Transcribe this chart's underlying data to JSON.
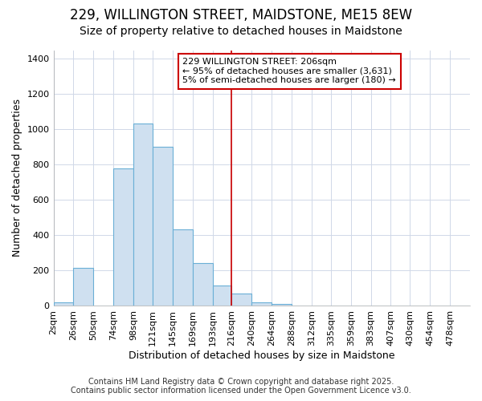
{
  "title": "229, WILLINGTON STREET, MAIDSTONE, ME15 8EW",
  "subtitle": "Size of property relative to detached houses in Maidstone",
  "xlabel": "Distribution of detached houses by size in Maidstone",
  "ylabel": "Number of detached properties",
  "categories": [
    "2sqm",
    "26sqm",
    "50sqm",
    "74sqm",
    "98sqm",
    "121sqm",
    "145sqm",
    "169sqm",
    "193sqm",
    "216sqm",
    "240sqm",
    "264sqm",
    "288sqm",
    "312sqm",
    "335sqm",
    "359sqm",
    "383sqm",
    "407sqm",
    "430sqm",
    "454sqm",
    "478sqm"
  ],
  "bin_edges": [
    2,
    26,
    50,
    74,
    98,
    121,
    145,
    169,
    193,
    216,
    240,
    264,
    288,
    312,
    335,
    359,
    383,
    407,
    430,
    454,
    478
  ],
  "values": [
    20,
    215,
    0,
    780,
    1035,
    900,
    435,
    245,
    115,
    70,
    20,
    10,
    0,
    0,
    0,
    0,
    0,
    0,
    0,
    0,
    0
  ],
  "bar_color": "#cfe0f0",
  "bar_edge_color": "#6aafd6",
  "vline_x": 216,
  "vline_color": "#cc0000",
  "annotation_title": "229 WILLINGTON STREET: 206sqm",
  "annotation_line1": "← 95% of detached houses are smaller (3,631)",
  "annotation_line2": "5% of semi-detached houses are larger (180) →",
  "annotation_box_color": "#cc0000",
  "ylim": [
    0,
    1450
  ],
  "yticks": [
    0,
    200,
    400,
    600,
    800,
    1000,
    1200,
    1400
  ],
  "footer1": "Contains HM Land Registry data © Crown copyright and database right 2025.",
  "footer2": "Contains public sector information licensed under the Open Government Licence v3.0.",
  "bg_color": "#ffffff",
  "plot_bg_color": "#ffffff",
  "title_fontsize": 12,
  "subtitle_fontsize": 10,
  "annotation_fontsize": 8,
  "tick_fontsize": 8,
  "xlabel_fontsize": 9,
  "ylabel_fontsize": 9,
  "footer_fontsize": 7
}
